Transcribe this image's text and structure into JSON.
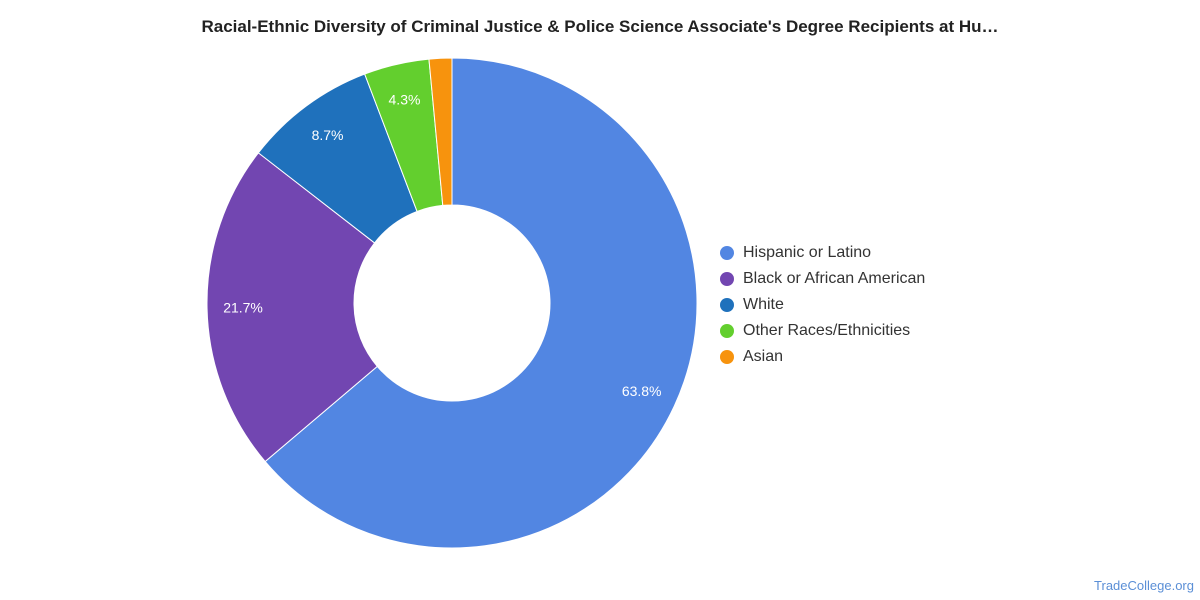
{
  "chart_data": {
    "type": "pie",
    "title": "Racial-Ethnic Diversity of Criminal Justice & Police Science Associate's Degree Recipients at Hu…",
    "donut": true,
    "legend_position": "right",
    "slices": [
      {
        "label": "Hispanic or Latino",
        "value": 63.8,
        "value_label": "63.8%",
        "color": "#5286e2"
      },
      {
        "label": "Black or African American",
        "value": 21.7,
        "value_label": "21.7%",
        "color": "#7246b1"
      },
      {
        "label": "White",
        "value": 8.7,
        "value_label": "8.7%",
        "color": "#1f71bc"
      },
      {
        "label": "Other Races/Ethnicities",
        "value": 4.3,
        "value_label": "4.3%",
        "color": "#63cf2e"
      },
      {
        "label": "Asian",
        "value": 1.5,
        "value_label": "",
        "color": "#f7930d"
      }
    ]
  },
  "watermark": "TradeCollege.org"
}
